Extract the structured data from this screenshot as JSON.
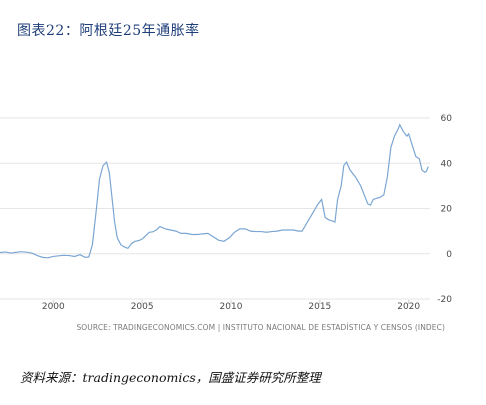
{
  "figure": {
    "title": "图表22：阿根廷25年通胀率",
    "note": "资料来源：tradingeconomics，国盛证券研究所整理"
  },
  "chart_data": {
    "type": "line",
    "title": "",
    "xlabel": "",
    "ylabel": "",
    "source": "SOURCE: TRADINGECONOMICS.COM | INSTITUTO NACIONAL DE ESTADÍSTICA Y CENSOS (INDEC)",
    "xlim": [
      1997,
      2021.2
    ],
    "ylim": [
      -20,
      60
    ],
    "x_ticks": [
      2000,
      2005,
      2010,
      2015,
      2020
    ],
    "y_ticks": [
      60,
      40,
      20,
      0,
      -20
    ],
    "grid": true,
    "color": "#7ba6d3",
    "series": [
      {
        "points": [
          [
            1997.0,
            0.5
          ],
          [
            1997.3,
            0.8
          ],
          [
            1997.6,
            0.3
          ],
          [
            1997.9,
            0.6
          ],
          [
            1998.2,
            0.9
          ],
          [
            1998.5,
            0.7
          ],
          [
            1998.8,
            0.3
          ],
          [
            1999.1,
            -0.8
          ],
          [
            1999.4,
            -1.6
          ],
          [
            1999.7,
            -1.8
          ],
          [
            2000.0,
            -1.2
          ],
          [
            2000.3,
            -0.9
          ],
          [
            2000.6,
            -0.7
          ],
          [
            2000.9,
            -0.8
          ],
          [
            2001.2,
            -1.2
          ],
          [
            2001.5,
            -0.4
          ],
          [
            2001.8,
            -1.6
          ],
          [
            2002.0,
            -1.4
          ],
          [
            2002.2,
            4.0
          ],
          [
            2002.4,
            18.0
          ],
          [
            2002.6,
            33.0
          ],
          [
            2002.8,
            39.0
          ],
          [
            2003.0,
            40.5
          ],
          [
            2003.15,
            36.0
          ],
          [
            2003.3,
            25.0
          ],
          [
            2003.45,
            14.0
          ],
          [
            2003.6,
            7.0
          ],
          [
            2003.8,
            4.0
          ],
          [
            2004.0,
            3.0
          ],
          [
            2004.2,
            2.4
          ],
          [
            2004.4,
            4.5
          ],
          [
            2004.6,
            5.5
          ],
          [
            2004.8,
            5.8
          ],
          [
            2005.0,
            6.5
          ],
          [
            2005.2,
            8.0
          ],
          [
            2005.4,
            9.5
          ],
          [
            2005.6,
            9.7
          ],
          [
            2005.8,
            10.5
          ],
          [
            2006.0,
            12.0
          ],
          [
            2006.3,
            11.0
          ],
          [
            2006.6,
            10.5
          ],
          [
            2006.9,
            10.0
          ],
          [
            2007.2,
            9.0
          ],
          [
            2007.5,
            9.0
          ],
          [
            2007.8,
            8.5
          ],
          [
            2008.1,
            8.5
          ],
          [
            2008.4,
            8.8
          ],
          [
            2008.7,
            9.0
          ],
          [
            2009.0,
            7.5
          ],
          [
            2009.3,
            6.0
          ],
          [
            2009.6,
            5.5
          ],
          [
            2009.9,
            7.0
          ],
          [
            2010.2,
            9.5
          ],
          [
            2010.5,
            11.0
          ],
          [
            2010.8,
            11.0
          ],
          [
            2011.1,
            10.0
          ],
          [
            2011.4,
            9.8
          ],
          [
            2011.7,
            9.8
          ],
          [
            2012.0,
            9.5
          ],
          [
            2012.3,
            9.8
          ],
          [
            2012.6,
            10.0
          ],
          [
            2012.9,
            10.5
          ],
          [
            2013.2,
            10.5
          ],
          [
            2013.5,
            10.5
          ],
          [
            2013.8,
            10.0
          ],
          [
            2014.0,
            10.0
          ],
          [
            2014.3,
            14.0
          ],
          [
            2014.6,
            18.0
          ],
          [
            2014.9,
            22.0
          ],
          [
            2015.1,
            24.0
          ],
          [
            2015.3,
            16.0
          ],
          [
            2015.5,
            15.0
          ],
          [
            2015.7,
            14.5
          ],
          [
            2015.85,
            14.0
          ],
          [
            2016.0,
            24.0
          ],
          [
            2016.2,
            30.0
          ],
          [
            2016.35,
            39.0
          ],
          [
            2016.5,
            40.5
          ],
          [
            2016.7,
            37.0
          ],
          [
            2017.0,
            34.0
          ],
          [
            2017.3,
            30.0
          ],
          [
            2017.5,
            26.0
          ],
          [
            2017.7,
            22.0
          ],
          [
            2017.85,
            21.5
          ],
          [
            2018.0,
            24.0
          ],
          [
            2018.2,
            24.5
          ],
          [
            2018.4,
            25.0
          ],
          [
            2018.6,
            26.0
          ],
          [
            2018.8,
            34.0
          ],
          [
            2019.0,
            47.0
          ],
          [
            2019.2,
            52.0
          ],
          [
            2019.4,
            55.0
          ],
          [
            2019.5,
            57.0
          ],
          [
            2019.7,
            54.0
          ],
          [
            2019.9,
            52.0
          ],
          [
            2020.0,
            53.0
          ],
          [
            2020.2,
            48.0
          ],
          [
            2020.4,
            43.0
          ],
          [
            2020.6,
            42.0
          ],
          [
            2020.75,
            37.0
          ],
          [
            2020.9,
            36.0
          ],
          [
            2021.0,
            36.5
          ],
          [
            2021.1,
            38.5
          ]
        ]
      }
    ]
  }
}
